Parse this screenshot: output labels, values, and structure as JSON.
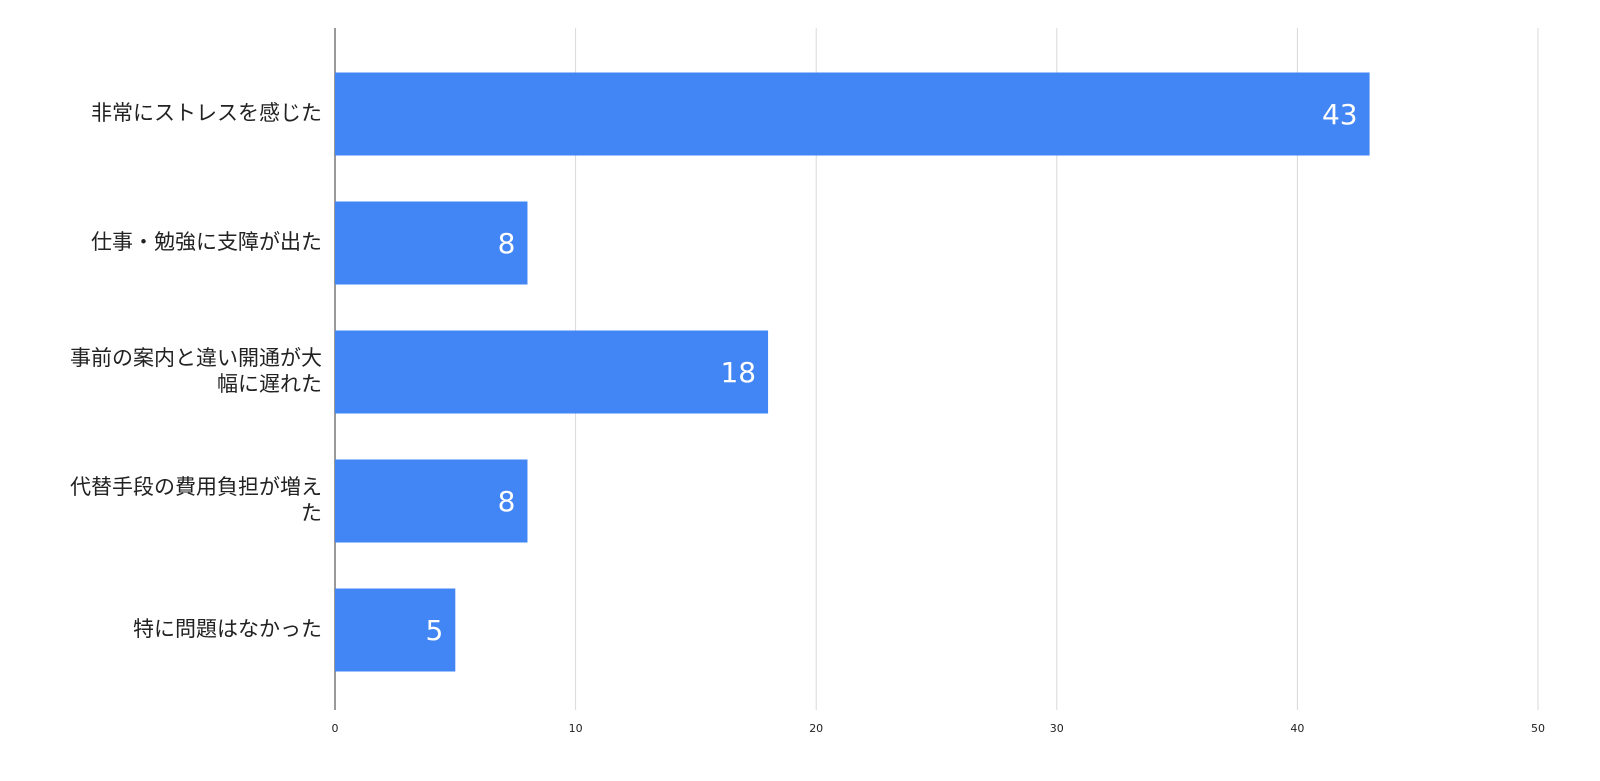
{
  "chart_data": {
    "type": "bar",
    "orientation": "horizontal",
    "categories": [
      "非常にストレスを感じた",
      "仕事・勉強に支障が出た",
      "事前の案内と違い開通が大幅に遅れた",
      "代替手段の費用負担が増えた",
      "特に問題はなかった"
    ],
    "values": [
      43,
      8,
      18,
      8,
      5
    ],
    "color": "#4285f4",
    "xlim": [
      0,
      50
    ],
    "xticks": [
      0,
      10,
      20,
      30,
      40,
      50
    ],
    "grid": true
  }
}
